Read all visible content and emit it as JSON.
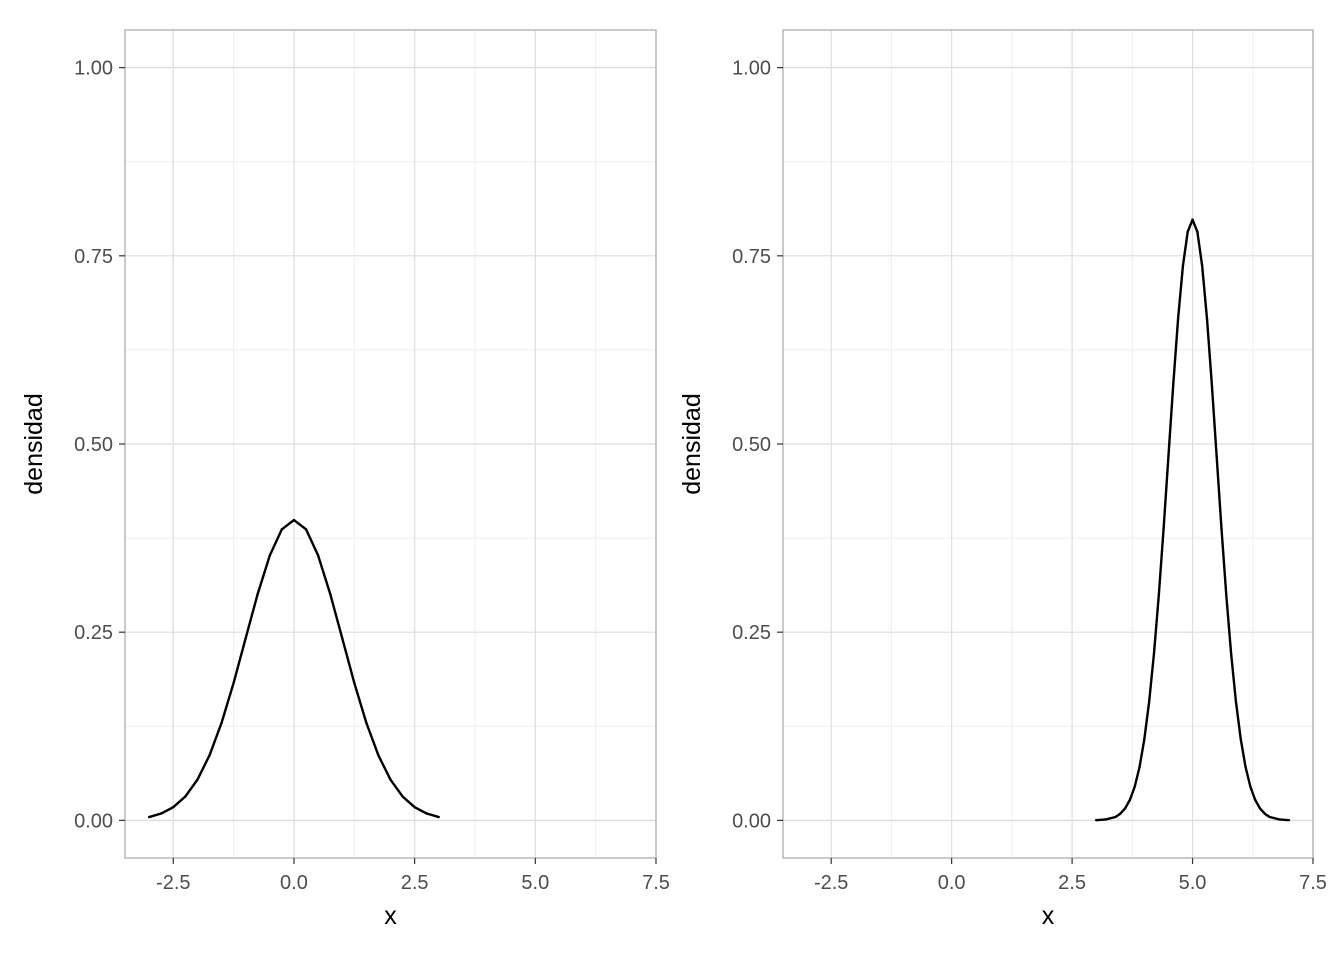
{
  "chart_data": [
    {
      "type": "line",
      "title": "",
      "xlabel": "x",
      "ylabel": "densidad",
      "xlim": [
        -3.5,
        7.5
      ],
      "ylim": [
        -0.05,
        1.05
      ],
      "x_ticks": [
        -2.5,
        0.0,
        2.5,
        5.0,
        7.5
      ],
      "x_tick_labels": [
        "-2.5",
        "0.0",
        "2.5",
        "5.0",
        "7.5"
      ],
      "y_ticks": [
        0.0,
        0.25,
        0.5,
        0.75,
        1.0
      ],
      "y_tick_labels": [
        "0.00",
        "0.25",
        "0.50",
        "0.75",
        "1.00"
      ],
      "grid": true,
      "legend": "none",
      "line_color": "#000000",
      "series": [
        {
          "x": [
            -3.0,
            -2.75,
            -2.5,
            -2.25,
            -2.0,
            -1.75,
            -1.5,
            -1.25,
            -1.0,
            -0.75,
            -0.5,
            -0.25,
            0.0,
            0.25,
            0.5,
            0.75,
            1.0,
            1.25,
            1.5,
            1.75,
            2.0,
            2.25,
            2.5,
            2.75,
            3.0
          ],
          "y": [
            0.0044,
            0.0091,
            0.0175,
            0.0317,
            0.054,
            0.0863,
            0.1295,
            0.1826,
            0.242,
            0.3011,
            0.3521,
            0.3867,
            0.3989,
            0.3867,
            0.3521,
            0.3011,
            0.242,
            0.1826,
            0.1295,
            0.0863,
            0.054,
            0.0317,
            0.0175,
            0.0091,
            0.0044
          ]
        }
      ]
    },
    {
      "type": "line",
      "title": "",
      "xlabel": "x",
      "ylabel": "densidad",
      "xlim": [
        -3.5,
        7.5
      ],
      "ylim": [
        -0.05,
        1.05
      ],
      "x_ticks": [
        -2.5,
        0.0,
        2.5,
        5.0,
        7.5
      ],
      "x_tick_labels": [
        "-2.5",
        "0.0",
        "2.5",
        "5.0",
        "7.5"
      ],
      "y_ticks": [
        0.0,
        0.25,
        0.5,
        0.75,
        1.0
      ],
      "y_tick_labels": [
        "0.00",
        "0.25",
        "0.50",
        "0.75",
        "1.00"
      ],
      "grid": true,
      "legend": "none",
      "line_color": "#000000",
      "series": [
        {
          "x": [
            3.0,
            3.2,
            3.4,
            3.5,
            3.6,
            3.7,
            3.8,
            3.9,
            4.0,
            4.1,
            4.2,
            4.3,
            4.4,
            4.5,
            4.6,
            4.7,
            4.8,
            4.9,
            5.0,
            5.1,
            5.2,
            5.3,
            5.4,
            5.5,
            5.6,
            5.7,
            5.8,
            5.9,
            6.0,
            6.1,
            6.2,
            6.3,
            6.4,
            6.5,
            6.6,
            6.8,
            7.0
          ],
          "y": [
            0.0003,
            0.0012,
            0.0045,
            0.0088,
            0.0158,
            0.0272,
            0.0448,
            0.0709,
            0.108,
            0.158,
            0.2218,
            0.2995,
            0.3883,
            0.4839,
            0.5794,
            0.6664,
            0.7365,
            0.7821,
            0.7979,
            0.7821,
            0.7365,
            0.6664,
            0.5794,
            0.4839,
            0.3883,
            0.2995,
            0.2218,
            0.158,
            0.108,
            0.0709,
            0.0448,
            0.0272,
            0.0158,
            0.0088,
            0.0045,
            0.0012,
            0.0003
          ]
        }
      ]
    }
  ]
}
